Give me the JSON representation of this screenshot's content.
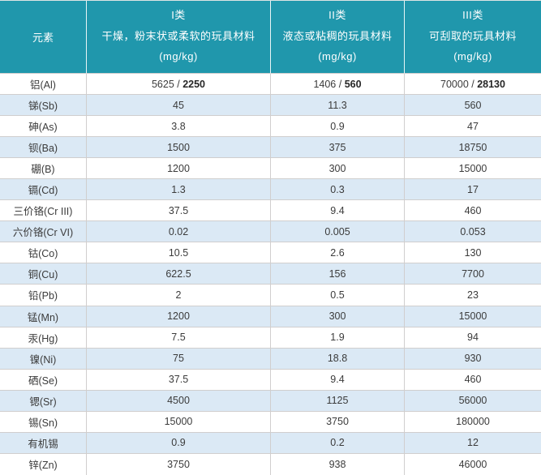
{
  "table": {
    "header": {
      "element_label": "元素",
      "columns": [
        {
          "class_label": "I类",
          "description": "干燥，粉末状或柔软的玩具材料",
          "unit": "(mg/kg)"
        },
        {
          "class_label": "II类",
          "description": "液态或粘稠的玩具材料",
          "unit": "(mg/kg)"
        },
        {
          "class_label": "III类",
          "description": "可刮取的玩具材料",
          "unit": "(mg/kg)"
        }
      ]
    },
    "rows": [
      {
        "element": "铝(Al)",
        "values": [
          {
            "text": "5625 / ",
            "bold": "2250"
          },
          {
            "text": "1406 / ",
            "bold": "560"
          },
          {
            "text": "70000 / ",
            "bold": "28130"
          }
        ]
      },
      {
        "element": "锑(Sb)",
        "values": [
          {
            "text": "45"
          },
          {
            "text": "11.3"
          },
          {
            "text": "560"
          }
        ]
      },
      {
        "element": "砷(As)",
        "values": [
          {
            "text": "3.8"
          },
          {
            "text": "0.9"
          },
          {
            "text": "47"
          }
        ]
      },
      {
        "element": "钡(Ba)",
        "values": [
          {
            "text": "1500"
          },
          {
            "text": "375"
          },
          {
            "text": "18750"
          }
        ]
      },
      {
        "element": "硼(B)",
        "values": [
          {
            "text": "1200"
          },
          {
            "text": "300"
          },
          {
            "text": "15000"
          }
        ]
      },
      {
        "element": "镉(Cd)",
        "values": [
          {
            "text": "1.3"
          },
          {
            "text": "0.3"
          },
          {
            "text": "17"
          }
        ]
      },
      {
        "element": "三价铬(Cr III)",
        "values": [
          {
            "text": "37.5"
          },
          {
            "text": "9.4"
          },
          {
            "text": "460"
          }
        ]
      },
      {
        "element": "六价铬(Cr VI)",
        "values": [
          {
            "text": "0.02"
          },
          {
            "text": "0.005"
          },
          {
            "text": "0.053"
          }
        ]
      },
      {
        "element": "钴(Co)",
        "values": [
          {
            "text": "10.5"
          },
          {
            "text": "2.6"
          },
          {
            "text": "130"
          }
        ]
      },
      {
        "element": "铜(Cu)",
        "values": [
          {
            "text": "622.5"
          },
          {
            "text": "156"
          },
          {
            "text": "7700"
          }
        ]
      },
      {
        "element": "铅(Pb)",
        "values": [
          {
            "text": "2"
          },
          {
            "text": "0.5"
          },
          {
            "text": "23"
          }
        ]
      },
      {
        "element": "锰(Mn)",
        "values": [
          {
            "text": "1200"
          },
          {
            "text": "300"
          },
          {
            "text": "15000"
          }
        ]
      },
      {
        "element": "汞(Hg)",
        "values": [
          {
            "text": "7.5"
          },
          {
            "text": "1.9"
          },
          {
            "text": "94"
          }
        ]
      },
      {
        "element": "镍(Ni)",
        "values": [
          {
            "text": "75"
          },
          {
            "text": "18.8"
          },
          {
            "text": "930"
          }
        ]
      },
      {
        "element": "硒(Se)",
        "values": [
          {
            "text": "37.5"
          },
          {
            "text": "9.4"
          },
          {
            "text": "460"
          }
        ]
      },
      {
        "element": "锶(Sr)",
        "values": [
          {
            "text": "4500"
          },
          {
            "text": "1125"
          },
          {
            "text": "56000"
          }
        ]
      },
      {
        "element": "锡(Sn)",
        "values": [
          {
            "text": "15000"
          },
          {
            "text": "3750"
          },
          {
            "text": "180000"
          }
        ]
      },
      {
        "element": "有机锡",
        "values": [
          {
            "text": "0.9"
          },
          {
            "text": "0.2"
          },
          {
            "text": "12"
          }
        ]
      },
      {
        "element": "锌(Zn)",
        "values": [
          {
            "text": "3750"
          },
          {
            "text": "938"
          },
          {
            "text": "46000"
          }
        ]
      }
    ]
  },
  "colors": {
    "header_bg": "#2097AC",
    "stripe_bg": "#DBE9F5",
    "border": "#D0CECE",
    "header_text": "#FFFFFF",
    "body_text": "#3B3B3B",
    "bold_text": "#262626"
  }
}
